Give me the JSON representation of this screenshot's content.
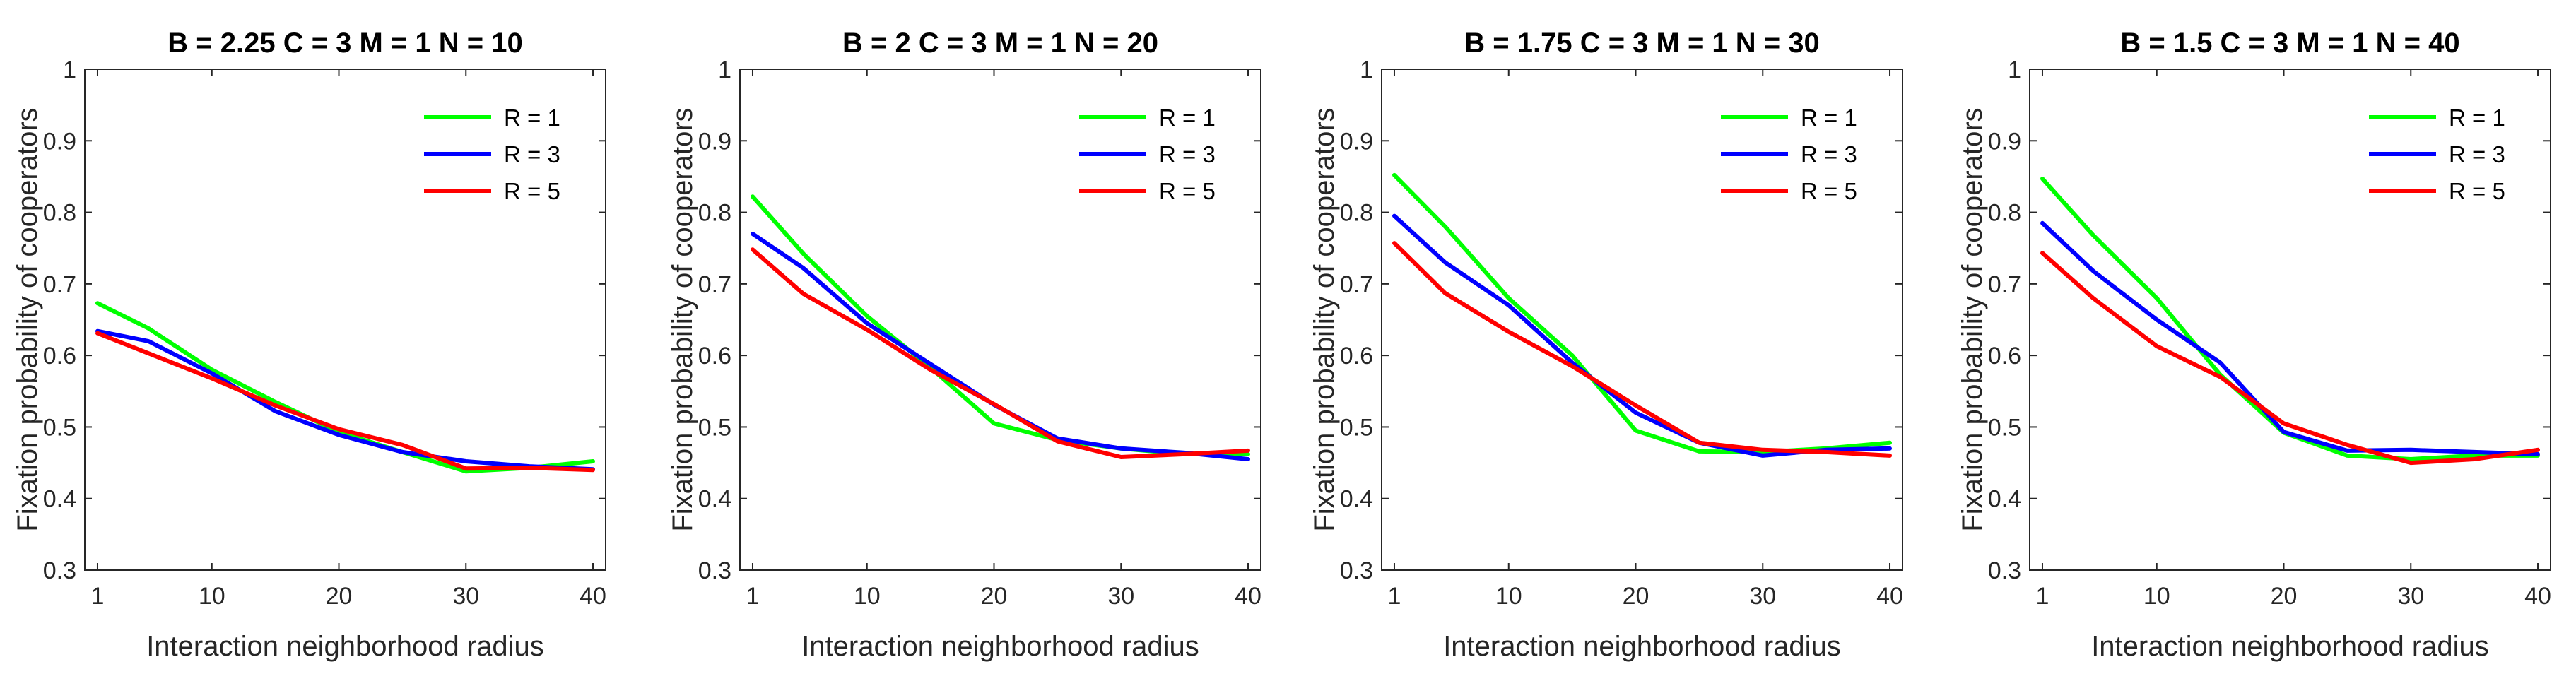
{
  "chart_data": [
    {
      "type": "line",
      "title": "B = 2.25   C = 3   M = 1   N = 10",
      "xlabel": "Interaction neighborhood radius",
      "ylabel": "Fixation probability of cooperators",
      "xlim": [
        0,
        41
      ],
      "ylim": [
        0.3,
        1
      ],
      "xticks": [
        1,
        10,
        20,
        30,
        40
      ],
      "yticks": [
        0.3,
        0.4,
        0.5,
        0.6,
        0.7,
        0.8,
        0.9,
        1
      ],
      "x": [
        1,
        5,
        10,
        15,
        20,
        25,
        30,
        35,
        40
      ],
      "legend_position": "top-right",
      "series": [
        {
          "name": "R = 1",
          "color": "#00ff00",
          "values": [
            0.673,
            0.638,
            0.58,
            0.535,
            0.493,
            0.465,
            0.438,
            0.443,
            0.452
          ]
        },
        {
          "name": "R = 3",
          "color": "#0000ff",
          "values": [
            0.634,
            0.62,
            0.575,
            0.522,
            0.489,
            0.465,
            0.452,
            0.445,
            0.441
          ]
        },
        {
          "name": "R = 5",
          "color": "#ff0000",
          "values": [
            0.631,
            0.603,
            0.568,
            0.53,
            0.497,
            0.475,
            0.442,
            0.443,
            0.44
          ]
        }
      ]
    },
    {
      "type": "line",
      "title": "B = 2   C = 3   M = 1   N = 20",
      "xlabel": "Interaction neighborhood radius",
      "ylabel": "Fixation probability of cooperators",
      "xlim": [
        0,
        41
      ],
      "ylim": [
        0.3,
        1
      ],
      "xticks": [
        1,
        10,
        20,
        30,
        40
      ],
      "yticks": [
        0.3,
        0.4,
        0.5,
        0.6,
        0.7,
        0.8,
        0.9,
        1
      ],
      "x": [
        1,
        5,
        10,
        15,
        20,
        25,
        30,
        35,
        40
      ],
      "legend_position": "top-right",
      "series": [
        {
          "name": "R = 1",
          "color": "#00ff00",
          "values": [
            0.822,
            0.742,
            0.655,
            0.583,
            0.505,
            0.482,
            0.47,
            0.462,
            0.462
          ]
        },
        {
          "name": "R = 3",
          "color": "#0000ff",
          "values": [
            0.77,
            0.722,
            0.645,
            0.588,
            0.531,
            0.484,
            0.47,
            0.464,
            0.455
          ]
        },
        {
          "name": "R = 5",
          "color": "#ff0000",
          "values": [
            0.748,
            0.686,
            0.636,
            0.58,
            0.532,
            0.48,
            0.458,
            0.462,
            0.467
          ]
        }
      ]
    },
    {
      "type": "line",
      "title": "B = 1.75   C = 3   M = 1   N = 30",
      "xlabel": "Interaction neighborhood radius",
      "ylabel": "Fixation probability of cooperators",
      "xlim": [
        0,
        41
      ],
      "ylim": [
        0.3,
        1
      ],
      "xticks": [
        1,
        10,
        20,
        30,
        40
      ],
      "yticks": [
        0.3,
        0.4,
        0.5,
        0.6,
        0.7,
        0.8,
        0.9,
        1
      ],
      "x": [
        1,
        5,
        10,
        15,
        20,
        25,
        30,
        35,
        40
      ],
      "legend_position": "top-right",
      "series": [
        {
          "name": "R = 1",
          "color": "#00ff00",
          "values": [
            0.852,
            0.78,
            0.68,
            0.6,
            0.495,
            0.466,
            0.465,
            0.47,
            0.478
          ]
        },
        {
          "name": "R = 3",
          "color": "#0000ff",
          "values": [
            0.795,
            0.73,
            0.67,
            0.59,
            0.52,
            0.478,
            0.46,
            0.468,
            0.47
          ]
        },
        {
          "name": "R = 5",
          "color": "#ff0000",
          "values": [
            0.757,
            0.687,
            0.633,
            0.585,
            0.53,
            0.478,
            0.468,
            0.465,
            0.46
          ]
        }
      ]
    },
    {
      "type": "line",
      "title": "B = 1.5   C = 3   M = 1   N = 40",
      "xlabel": "Interaction neighborhood radius",
      "ylabel": "Fixation probability of cooperators",
      "xlim": [
        0,
        41
      ],
      "ylim": [
        0.3,
        1
      ],
      "xticks": [
        1,
        10,
        20,
        30,
        40
      ],
      "yticks": [
        0.3,
        0.4,
        0.5,
        0.6,
        0.7,
        0.8,
        0.9,
        1
      ],
      "x": [
        1,
        5,
        10,
        15,
        20,
        25,
        30,
        35,
        40
      ],
      "legend_position": "top-right",
      "series": [
        {
          "name": "R = 1",
          "color": "#00ff00",
          "values": [
            0.847,
            0.768,
            0.68,
            0.573,
            0.492,
            0.46,
            0.455,
            0.46,
            0.46
          ]
        },
        {
          "name": "R = 3",
          "color": "#0000ff",
          "values": [
            0.785,
            0.718,
            0.65,
            0.59,
            0.493,
            0.467,
            0.468,
            0.465,
            0.462
          ]
        },
        {
          "name": "R = 5",
          "color": "#ff0000",
          "values": [
            0.743,
            0.68,
            0.613,
            0.57,
            0.505,
            0.475,
            0.45,
            0.455,
            0.468
          ]
        }
      ]
    }
  ]
}
